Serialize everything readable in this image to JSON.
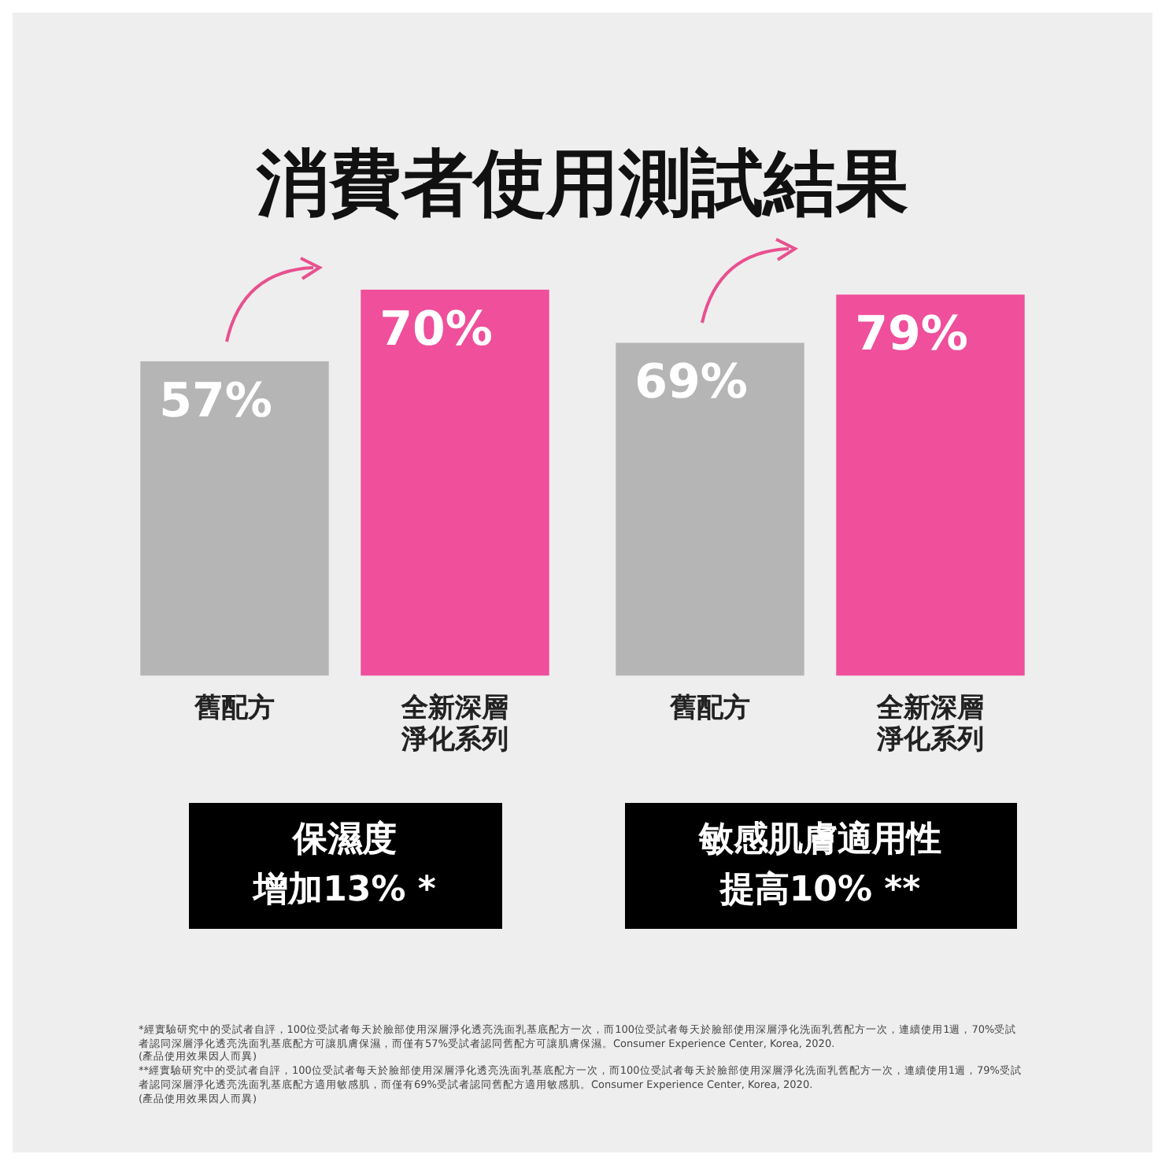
{
  "chart_data": [
    {
      "type": "bar",
      "title": "消費者使用測試結果",
      "categories": [
        "舊配方",
        "全新深層淨化系列"
      ],
      "values": [
        57,
        70
      ],
      "colors": [
        "#b5b5b5",
        "#ef4f9b"
      ],
      "value_labels": [
        "57%",
        "70%"
      ],
      "annotations": [
        "保濕度",
        "增加13% *",
        "*經實驗研究中的受試者自評，100位受試者每天於臉部使用深層淨化透亮洗面乳基底配方一次，而100位受試者每天於臉部使用深層淨化洗面乳舊配方一次，連續使用1週，70%受試者認同深層淨化透亮洗面乳基底配方可讓肌膚保濕，而僅有57%受試者認同舊配方可讓肌膚保濕。Consumer Experience Center, Korea, 2020.\n(產品使用效果因人而異)"
      ]
    },
    {
      "type": "bar",
      "categories": [
        "舊配方",
        "全新深層淨化系列"
      ],
      "values": [
        69,
        79
      ],
      "colors": [
        "#b5b5b5",
        "#ef4f9b"
      ],
      "value_labels": [
        "69%",
        "79%"
      ],
      "annotations": [
        "敏感肌膚適用性",
        "提高10% **",
        "**經實驗研究中的受試者自評，100位受試者每天於臉部使用深層淨化透亮洗面乳基底配方一次，而100位受試者每天於臉部使用深層淨化洗面乳舊配方一次，連續使用1週，79%受試者認同深層淨化透亮洗面乳基底配方適用敏感肌，而僅有69%受試者認同舊配方適用敏感肌。Consumer Experience Center, Korea, 2020.\n(產品使用效果因人而異)"
      ]
    }
  ]
}
